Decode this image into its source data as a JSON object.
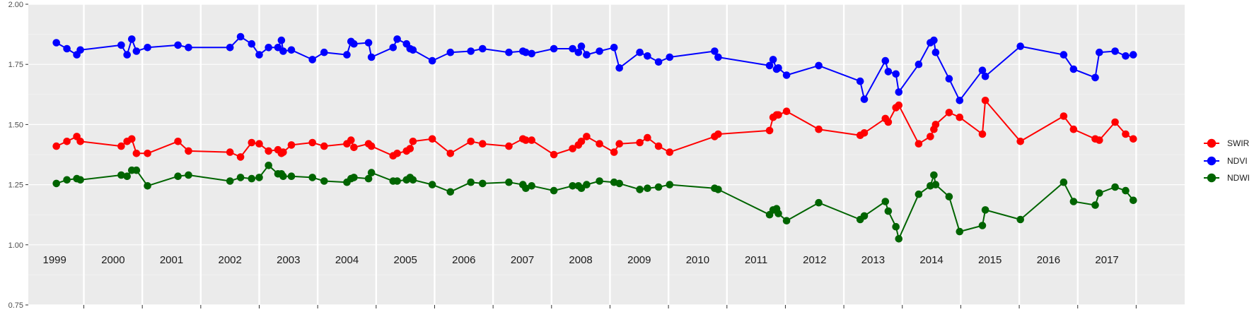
{
  "chart_data": {
    "type": "line",
    "title": "",
    "xlabel": "",
    "ylabel": "",
    "ylim": [
      0.75,
      2.0
    ],
    "xlim": [
      1998.55,
      2018.33
    ],
    "y_ticks": [
      "0.75",
      "1.00",
      "1.25",
      "1.50",
      "1.75",
      "2.00"
    ],
    "y_tick_values": [
      0.75,
      1.0,
      1.25,
      1.5,
      1.75,
      2.0
    ],
    "year_labels": [
      "1999",
      "2000",
      "2001",
      "2002",
      "2003",
      "2004",
      "2005",
      "2006",
      "2007",
      "2008",
      "2009",
      "2010",
      "2011",
      "2012",
      "2013",
      "2014",
      "2015",
      "2016",
      "2017"
    ],
    "year_label_values": [
      1999,
      2000,
      2001,
      2002,
      2003,
      2004,
      2005,
      2006,
      2007,
      2008,
      2009,
      2010,
      2011,
      2012,
      2013,
      2014,
      2015,
      2016,
      2017
    ],
    "year_boundaries": [
      1999.5,
      2000.5,
      2001.5,
      2002.5,
      2003.5,
      2004.5,
      2005.5,
      2006.5,
      2007.5,
      2008.5,
      2009.5,
      2010.5,
      2011.5,
      2012.5,
      2013.5,
      2014.5,
      2015.5,
      2016.5,
      2017.5
    ],
    "grid": true,
    "background": "#ebebeb",
    "legend_position": "right",
    "x": [
      1999.03,
      1999.21,
      1999.38,
      1999.44,
      2000.14,
      2000.24,
      2000.32,
      2000.4,
      2000.59,
      2001.11,
      2001.29,
      2002.0,
      2002.18,
      2002.37,
      2002.5,
      2002.66,
      2002.82,
      2002.88,
      2002.91,
      2003.05,
      2003.41,
      2003.61,
      2004.0,
      2004.07,
      2004.12,
      2004.37,
      2004.42,
      2004.79,
      2004.86,
      2005.02,
      2005.08,
      2005.13,
      2005.46,
      2005.77,
      2006.12,
      2006.32,
      2006.77,
      2007.01,
      2007.06,
      2007.16,
      2007.54,
      2007.86,
      2007.96,
      2008.01,
      2008.1,
      2008.32,
      2008.57,
      2008.66,
      2009.01,
      2009.14,
      2009.33,
      2009.52,
      2010.29,
      2010.35,
      2011.23,
      2011.29,
      2011.35,
      2011.38,
      2011.52,
      2012.07,
      2012.78,
      2012.85,
      2013.21,
      2013.26,
      2013.39,
      2013.44,
      2013.78,
      2013.98,
      2014.04,
      2014.07,
      2014.3,
      2014.48,
      2014.87,
      2014.92,
      2015.52,
      2016.26,
      2016.43,
      2016.8,
      2016.87,
      2017.14,
      2017.32,
      2017.45
    ]
  },
  "series": [
    {
      "name": "SWIR",
      "color": "#ff0000",
      "values": [
        1.41,
        1.43,
        1.45,
        1.43,
        1.41,
        1.43,
        1.44,
        1.38,
        1.38,
        1.43,
        1.39,
        1.385,
        1.365,
        1.425,
        1.42,
        1.39,
        1.395,
        1.38,
        1.385,
        1.415,
        1.425,
        1.41,
        1.42,
        1.435,
        1.405,
        1.42,
        1.41,
        1.37,
        1.38,
        1.39,
        1.4,
        1.43,
        1.44,
        1.38,
        1.43,
        1.42,
        1.41,
        1.44,
        1.435,
        1.435,
        1.375,
        1.4,
        1.415,
        1.43,
        1.45,
        1.42,
        1.385,
        1.42,
        1.425,
        1.445,
        1.41,
        1.385,
        1.45,
        1.46,
        1.475,
        1.53,
        1.54,
        1.54,
        1.555,
        1.48,
        1.455,
        1.465,
        1.525,
        1.51,
        1.57,
        1.58,
        1.42,
        1.45,
        1.48,
        1.5,
        1.55,
        1.53,
        1.46,
        1.6,
        1.43,
        1.535,
        1.48,
        1.44,
        1.435,
        1.51,
        1.46,
        1.44
      ]
    },
    {
      "name": "NDVI",
      "color": "#0000ff",
      "values": [
        1.84,
        1.815,
        1.79,
        1.81,
        1.83,
        1.79,
        1.855,
        1.805,
        1.82,
        1.83,
        1.82,
        1.82,
        1.865,
        1.835,
        1.79,
        1.82,
        1.82,
        1.85,
        1.805,
        1.81,
        1.77,
        1.8,
        1.79,
        1.845,
        1.835,
        1.84,
        1.78,
        1.82,
        1.855,
        1.835,
        1.815,
        1.81,
        1.765,
        1.8,
        1.805,
        1.815,
        1.8,
        1.805,
        1.8,
        1.795,
        1.815,
        1.815,
        1.8,
        1.825,
        1.79,
        1.805,
        1.82,
        1.735,
        1.8,
        1.785,
        1.76,
        1.78,
        1.805,
        1.78,
        1.745,
        1.77,
        1.73,
        1.735,
        1.705,
        1.745,
        1.68,
        1.605,
        1.765,
        1.72,
        1.71,
        1.635,
        1.75,
        1.84,
        1.85,
        1.8,
        1.69,
        1.6,
        1.725,
        1.7,
        1.825,
        1.79,
        1.73,
        1.695,
        1.8,
        1.805,
        1.785,
        1.79
      ]
    },
    {
      "name": "NDWI",
      "color": "#006400",
      "values": [
        1.255,
        1.27,
        1.275,
        1.27,
        1.29,
        1.285,
        1.31,
        1.31,
        1.245,
        1.285,
        1.29,
        1.265,
        1.28,
        1.275,
        1.28,
        1.33,
        1.295,
        1.295,
        1.285,
        1.285,
        1.28,
        1.265,
        1.26,
        1.275,
        1.28,
        1.275,
        1.3,
        1.265,
        1.265,
        1.27,
        1.28,
        1.27,
        1.25,
        1.22,
        1.26,
        1.255,
        1.26,
        1.25,
        1.235,
        1.245,
        1.225,
        1.245,
        1.245,
        1.235,
        1.25,
        1.265,
        1.26,
        1.255,
        1.23,
        1.235,
        1.24,
        1.25,
        1.235,
        1.23,
        1.125,
        1.145,
        1.15,
        1.13,
        1.1,
        1.175,
        1.105,
        1.12,
        1.18,
        1.14,
        1.075,
        1.025,
        1.21,
        1.245,
        1.29,
        1.25,
        1.2,
        1.055,
        1.08,
        1.145,
        1.105,
        1.26,
        1.18,
        1.165,
        1.215,
        1.24,
        1.225,
        1.185
      ]
    }
  ],
  "legend": [
    {
      "label": "SWIR",
      "color": "#ff0000"
    },
    {
      "label": "NDVI",
      "color": "#0000ff"
    },
    {
      "label": "NDWI",
      "color": "#006400"
    }
  ]
}
